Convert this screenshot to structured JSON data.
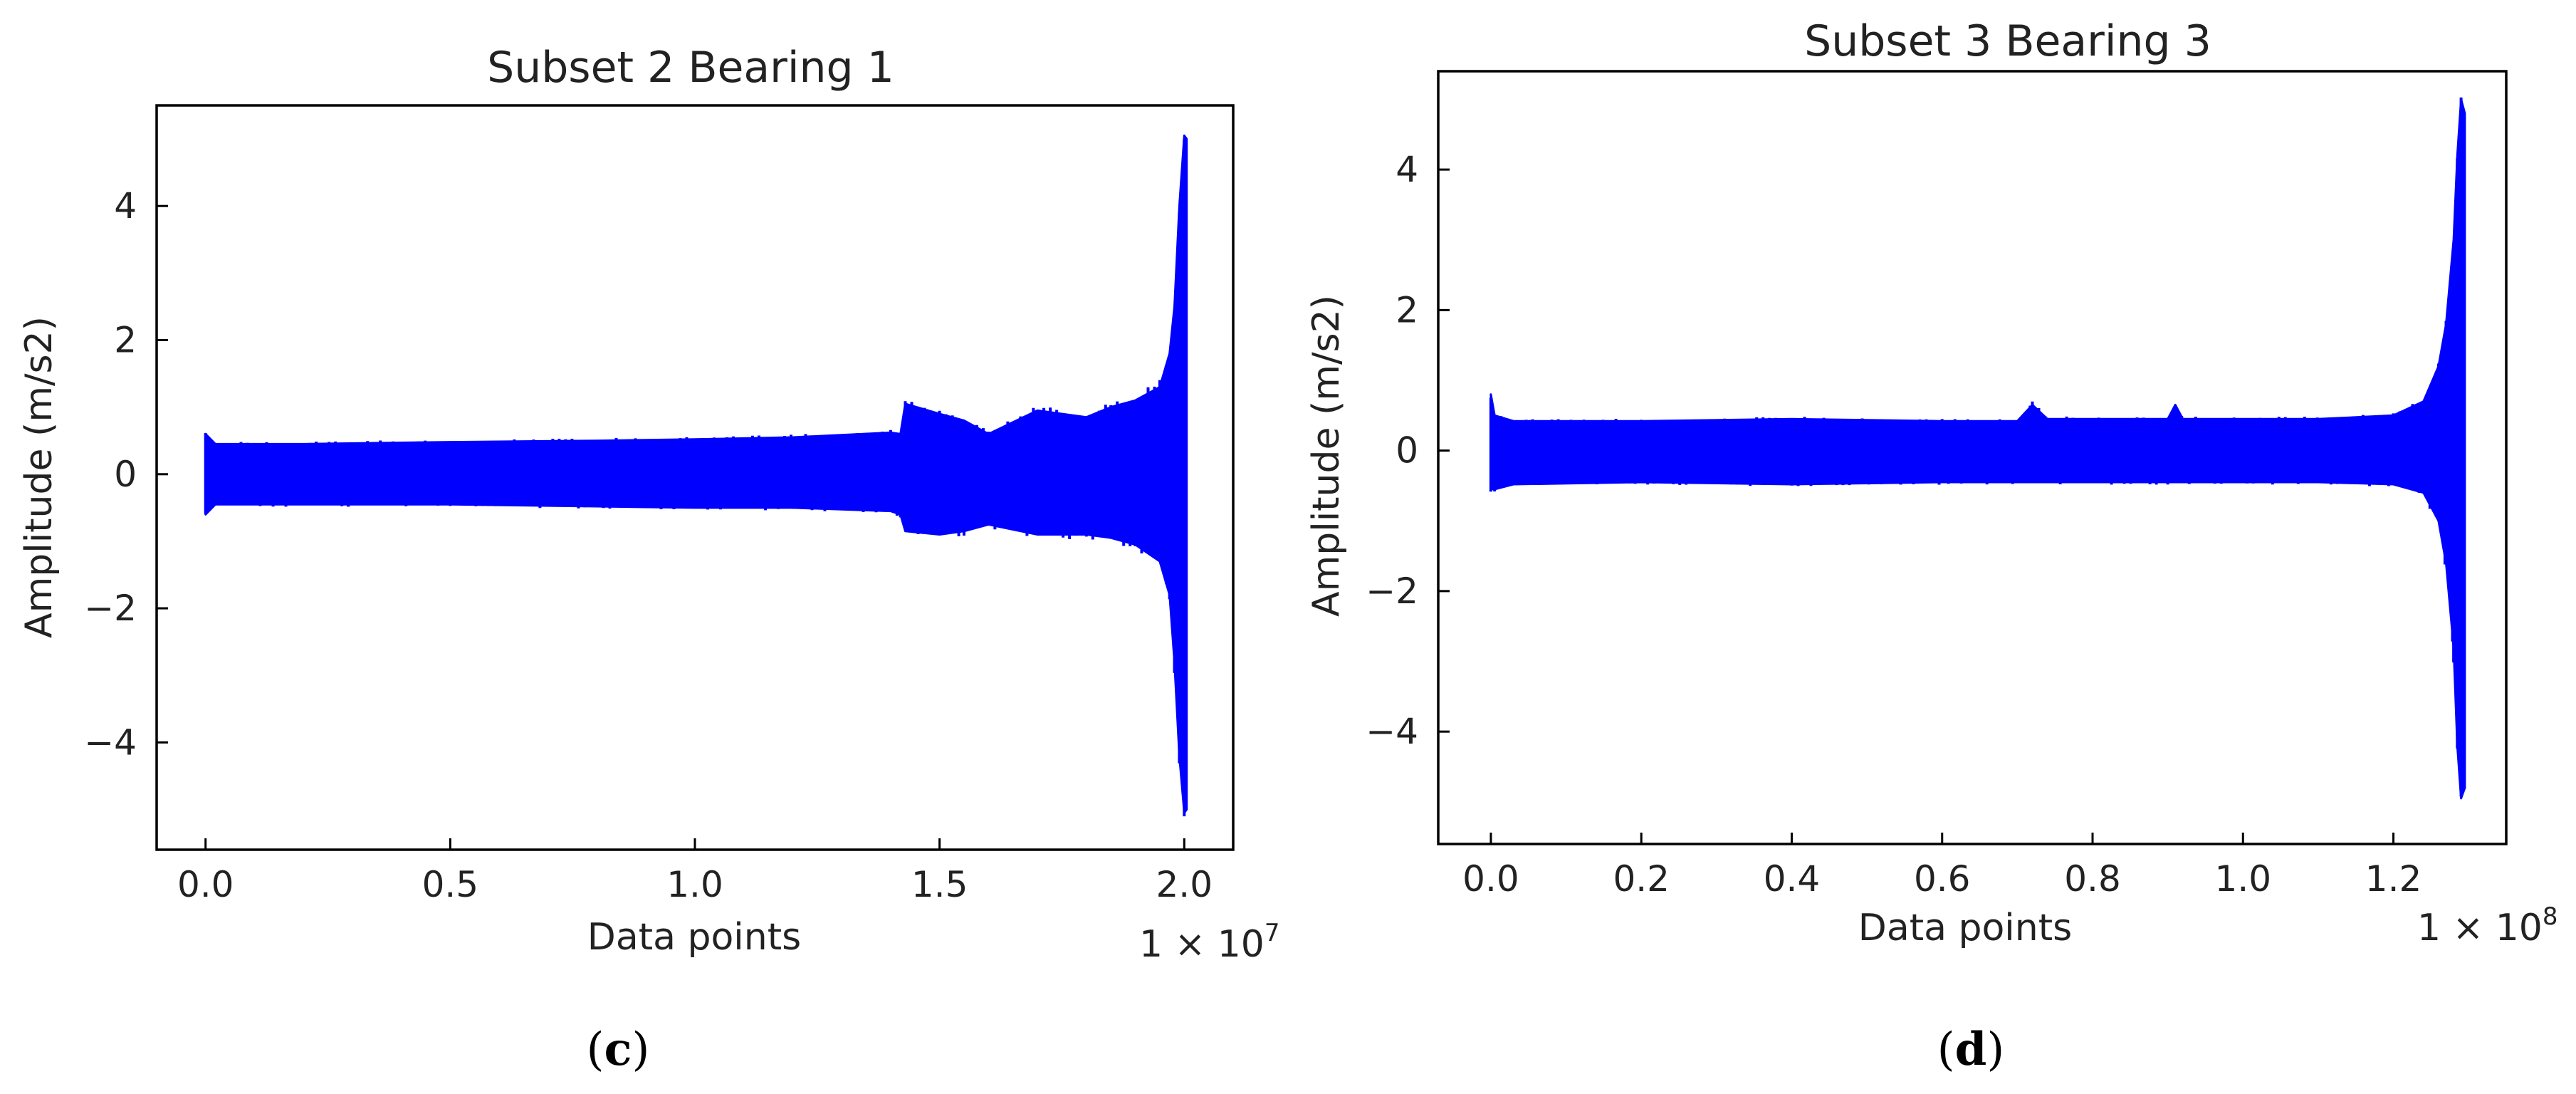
{
  "figure": {
    "color": "#0000ff",
    "chart_data": [
      {
        "type": "line",
        "panel": "(c)",
        "panel_letter": "c",
        "title": "Subset 2 Bearing 1",
        "xlabel": "Data points",
        "ylabel": "Amplitude (m/s2)",
        "x_multiplier_base": "1 × 10",
        "x_multiplier_exp": "7",
        "xlim": [
          -0.1,
          2.1
        ],
        "ylim": [
          -5.6,
          5.5
        ],
        "x_ticks": [
          0.0,
          0.5,
          1.0,
          1.5,
          2.0
        ],
        "x_tick_labels": [
          "0.0",
          "0.5",
          "1.0",
          "1.5",
          "2.0"
        ],
        "y_ticks": [
          -4,
          -2,
          0,
          2,
          4
        ],
        "y_tick_labels": [
          "−4",
          "−2",
          "0",
          "2",
          "4"
        ],
        "grid": false,
        "series": [
          {
            "x": [
              0.0,
              0.02,
              0.2,
              0.5,
              0.8,
              1.0,
              1.2,
              1.4,
              1.42,
              1.43,
              1.5,
              1.55,
              1.6,
              1.7,
              1.8,
              1.85,
              1.9,
              1.95,
              1.97,
              1.98,
              1.99,
              2.0,
              2.005
            ],
            "upper": [
              0.6,
              0.45,
              0.45,
              0.48,
              0.5,
              0.52,
              0.55,
              0.62,
              0.6,
              1.05,
              0.9,
              0.8,
              0.6,
              0.95,
              0.85,
              1.0,
              1.1,
              1.3,
              1.8,
              2.5,
              4.0,
              5.05,
              5.0
            ],
            "lower": [
              -0.6,
              -0.45,
              -0.45,
              -0.45,
              -0.48,
              -0.5,
              -0.5,
              -0.55,
              -0.6,
              -0.85,
              -0.9,
              -0.85,
              -0.75,
              -0.9,
              -0.9,
              -0.95,
              -1.05,
              -1.3,
              -1.8,
              -2.8,
              -4.2,
              -5.05,
              -5.0
            ]
          }
        ]
      },
      {
        "type": "line",
        "panel": "(d)",
        "panel_letter": "d",
        "title": "Subset 3 Bearing 3",
        "xlabel": "Data points",
        "ylabel": "Amplitude (m/s2)",
        "x_multiplier_base": "1 × 10",
        "x_multiplier_exp": "8",
        "xlim": [
          -0.07,
          1.35
        ],
        "ylim": [
          -5.6,
          5.4
        ],
        "x_ticks": [
          0.0,
          0.2,
          0.4,
          0.6,
          0.8,
          1.0,
          1.2
        ],
        "x_tick_labels": [
          "0.0",
          "0.2",
          "0.4",
          "0.6",
          "0.8",
          "1.0",
          "1.2"
        ],
        "y_ticks": [
          -4,
          -2,
          0,
          2,
          4
        ],
        "y_tick_labels": [
          "−4",
          "−2",
          "0",
          "2",
          "4"
        ],
        "grid": false,
        "series": [
          {
            "x": [
              0.0,
              0.005,
              0.03,
              0.2,
              0.4,
              0.6,
              0.7,
              0.72,
              0.74,
              0.9,
              0.91,
              0.92,
              1.1,
              1.2,
              1.24,
              1.26,
              1.27,
              1.28,
              1.285,
              1.29,
              1.295
            ],
            "upper": [
              0.8,
              0.5,
              0.42,
              0.42,
              0.45,
              0.42,
              0.42,
              0.65,
              0.45,
              0.45,
              0.65,
              0.45,
              0.45,
              0.5,
              0.7,
              1.2,
              1.8,
              3.0,
              4.2,
              5.0,
              4.8
            ],
            "lower": [
              -0.55,
              -0.55,
              -0.48,
              -0.45,
              -0.48,
              -0.45,
              -0.45,
              -0.45,
              -0.45,
              -0.45,
              -0.45,
              -0.45,
              -0.45,
              -0.48,
              -0.6,
              -1.0,
              -1.6,
              -2.8,
              -4.2,
              -4.95,
              -4.8
            ]
          }
        ]
      }
    ]
  }
}
